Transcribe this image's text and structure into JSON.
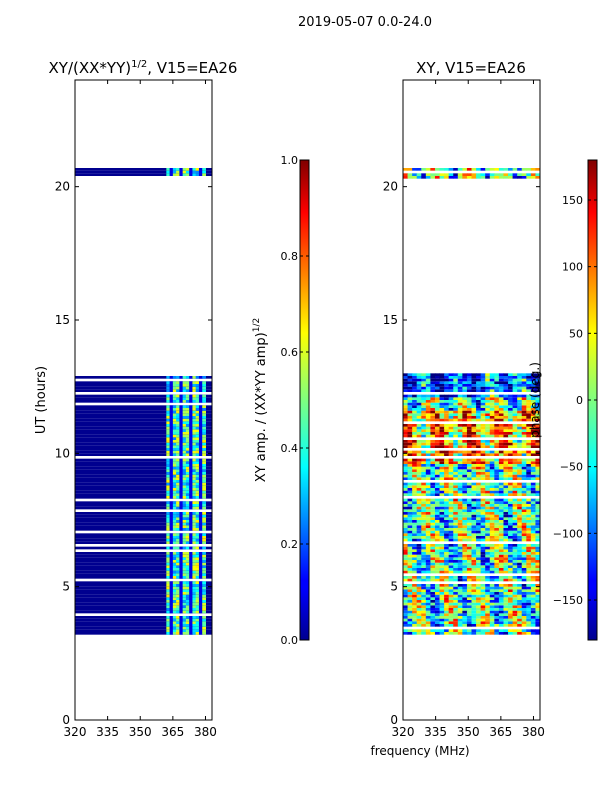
{
  "suptitle": "2019-05-07 0.0-24.0",
  "colors": {
    "background": "#ffffff",
    "no_data": "#ffffff",
    "frame": "#000000",
    "low_amp_fill": "#00008f"
  },
  "chart_data": [
    {
      "type": "heatmap",
      "panel": "left",
      "title_prefix": "XY/(XX*YY)",
      "title_sup": "1/2",
      "title_suffix": ", V15=EA26",
      "xlabel": "",
      "ylabel": "UT (hours)",
      "xlim": [
        320,
        383
      ],
      "ylim": [
        0,
        24
      ],
      "xticks": [
        320,
        335,
        350,
        365,
        380
      ],
      "yticks": [
        0,
        5,
        10,
        15,
        20
      ],
      "colormap": "jet",
      "data_blocks_ut": [
        [
          3.2,
          13.0
        ],
        [
          20.3,
          20.7
        ]
      ],
      "data_channels_mhz": [
        [
          362,
          380
        ]
      ],
      "colorbar": {
        "label_prefix": "XY amp. / (XX*YY amp)",
        "label_sup": "1/2",
        "range": [
          0.0,
          1.0
        ],
        "ticks": [
          "0.0",
          "0.2",
          "0.4",
          "0.6",
          "0.8",
          "1.0"
        ],
        "tick_values": [
          0.0,
          0.2,
          0.4,
          0.6,
          0.8,
          1.0
        ]
      }
    },
    {
      "type": "heatmap",
      "panel": "right",
      "title": "XY, V15=EA26",
      "xlabel": "frequency (MHz)",
      "ylabel": "",
      "xlim": [
        320,
        383
      ],
      "ylim": [
        0,
        24
      ],
      "xticks": [
        320,
        335,
        350,
        365,
        380
      ],
      "yticks": [
        0,
        5,
        10,
        15,
        20
      ],
      "colormap": "jet",
      "data_blocks_ut": [
        [
          3.2,
          13.0
        ],
        [
          20.3,
          20.7
        ]
      ],
      "colorbar": {
        "label": "phase (deg.)",
        "range": [
          -180,
          180
        ],
        "ticks": [
          "−150",
          "−100",
          "−50",
          "0",
          "50",
          "100",
          "150"
        ],
        "tick_values": [
          -150,
          -100,
          -50,
          0,
          50,
          100,
          150
        ]
      }
    }
  ]
}
